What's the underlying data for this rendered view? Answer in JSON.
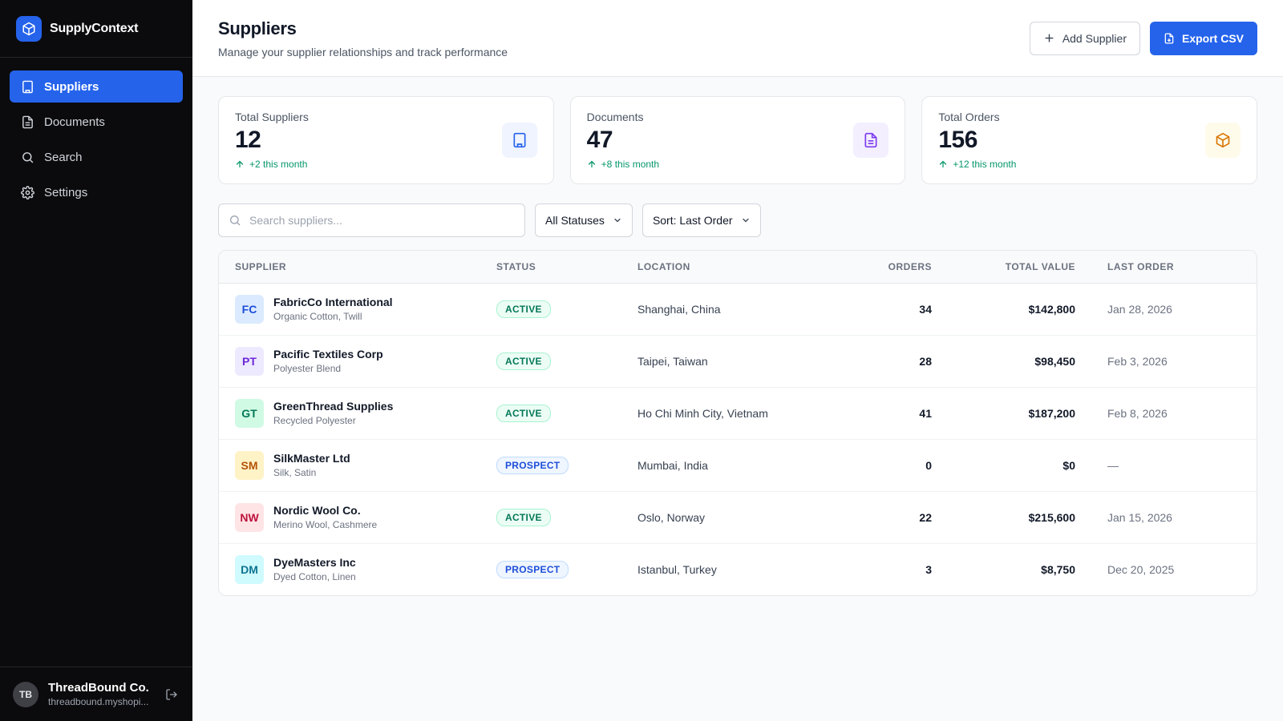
{
  "brand": {
    "name": "SupplyContext"
  },
  "nav": [
    {
      "label": "Suppliers",
      "icon": "building-icon",
      "active": true
    },
    {
      "label": "Documents",
      "icon": "document-icon",
      "active": false
    },
    {
      "label": "Search",
      "icon": "search-icon",
      "active": false
    },
    {
      "label": "Settings",
      "icon": "gear-icon",
      "active": false
    }
  ],
  "account": {
    "initials": "TB",
    "name": "ThreadBound Co.",
    "url": "threadbound.myshopi..."
  },
  "header": {
    "title": "Suppliers",
    "subtitle": "Manage your supplier relationships and track performance",
    "add_label": "Add Supplier",
    "export_label": "Export CSV"
  },
  "stats": [
    {
      "label": "Total Suppliers",
      "value": "12",
      "change": "+2 this month",
      "icon": "building-icon",
      "accent": "#2563eb",
      "accent_bg": "#eff4ff"
    },
    {
      "label": "Documents",
      "value": "47",
      "change": "+8 this month",
      "icon": "document-icon",
      "accent": "#7c3aed",
      "accent_bg": "#f3efff"
    },
    {
      "label": "Total Orders",
      "value": "156",
      "change": "+12 this month",
      "icon": "box-icon",
      "accent": "#d97706",
      "accent_bg": "#fffbeb"
    }
  ],
  "filters": {
    "search_placeholder": "Search suppliers...",
    "status_value": "All Statuses",
    "sort_value": "Sort: Last Order"
  },
  "table": {
    "columns": {
      "supplier": "Supplier",
      "status": "Status",
      "location": "Location",
      "orders": "Orders",
      "value": "Total Value",
      "last_order": "Last Order"
    },
    "rows": [
      {
        "initials": "FC",
        "name": "FabricCo International",
        "materials": "Organic Cotton, Twill",
        "status": "ACTIVE",
        "location": "Shanghai, China",
        "orders": "34",
        "value": "$142,800",
        "last_order": "Jan 28, 2026",
        "color": "#1d4ed8",
        "bg": "#dbeafe"
      },
      {
        "initials": "PT",
        "name": "Pacific Textiles Corp",
        "materials": "Polyester Blend",
        "status": "ACTIVE",
        "location": "Taipei, Taiwan",
        "orders": "28",
        "value": "$98,450",
        "last_order": "Feb 3, 2026",
        "color": "#6d28d9",
        "bg": "#ede9fe"
      },
      {
        "initials": "GT",
        "name": "GreenThread Supplies",
        "materials": "Recycled Polyester",
        "status": "ACTIVE",
        "location": "Ho Chi Minh City, Vietnam",
        "orders": "41",
        "value": "$187,200",
        "last_order": "Feb 8, 2026",
        "color": "#047857",
        "bg": "#d1fae5"
      },
      {
        "initials": "SM",
        "name": "SilkMaster Ltd",
        "materials": "Silk, Satin",
        "status": "PROSPECT",
        "location": "Mumbai, India",
        "orders": "0",
        "value": "$0",
        "last_order": "—",
        "color": "#b45309",
        "bg": "#fef3c7"
      },
      {
        "initials": "NW",
        "name": "Nordic Wool Co.",
        "materials": "Merino Wool, Cashmere",
        "status": "ACTIVE",
        "location": "Oslo, Norway",
        "orders": "22",
        "value": "$215,600",
        "last_order": "Jan 15, 2026",
        "color": "#be123c",
        "bg": "#ffe4e6"
      },
      {
        "initials": "DM",
        "name": "DyeMasters Inc",
        "materials": "Dyed Cotton, Linen",
        "status": "PROSPECT",
        "location": "Istanbul, Turkey",
        "orders": "3",
        "value": "$8,750",
        "last_order": "Dec 20, 2025",
        "color": "#0e7490",
        "bg": "#cffafe"
      }
    ]
  }
}
